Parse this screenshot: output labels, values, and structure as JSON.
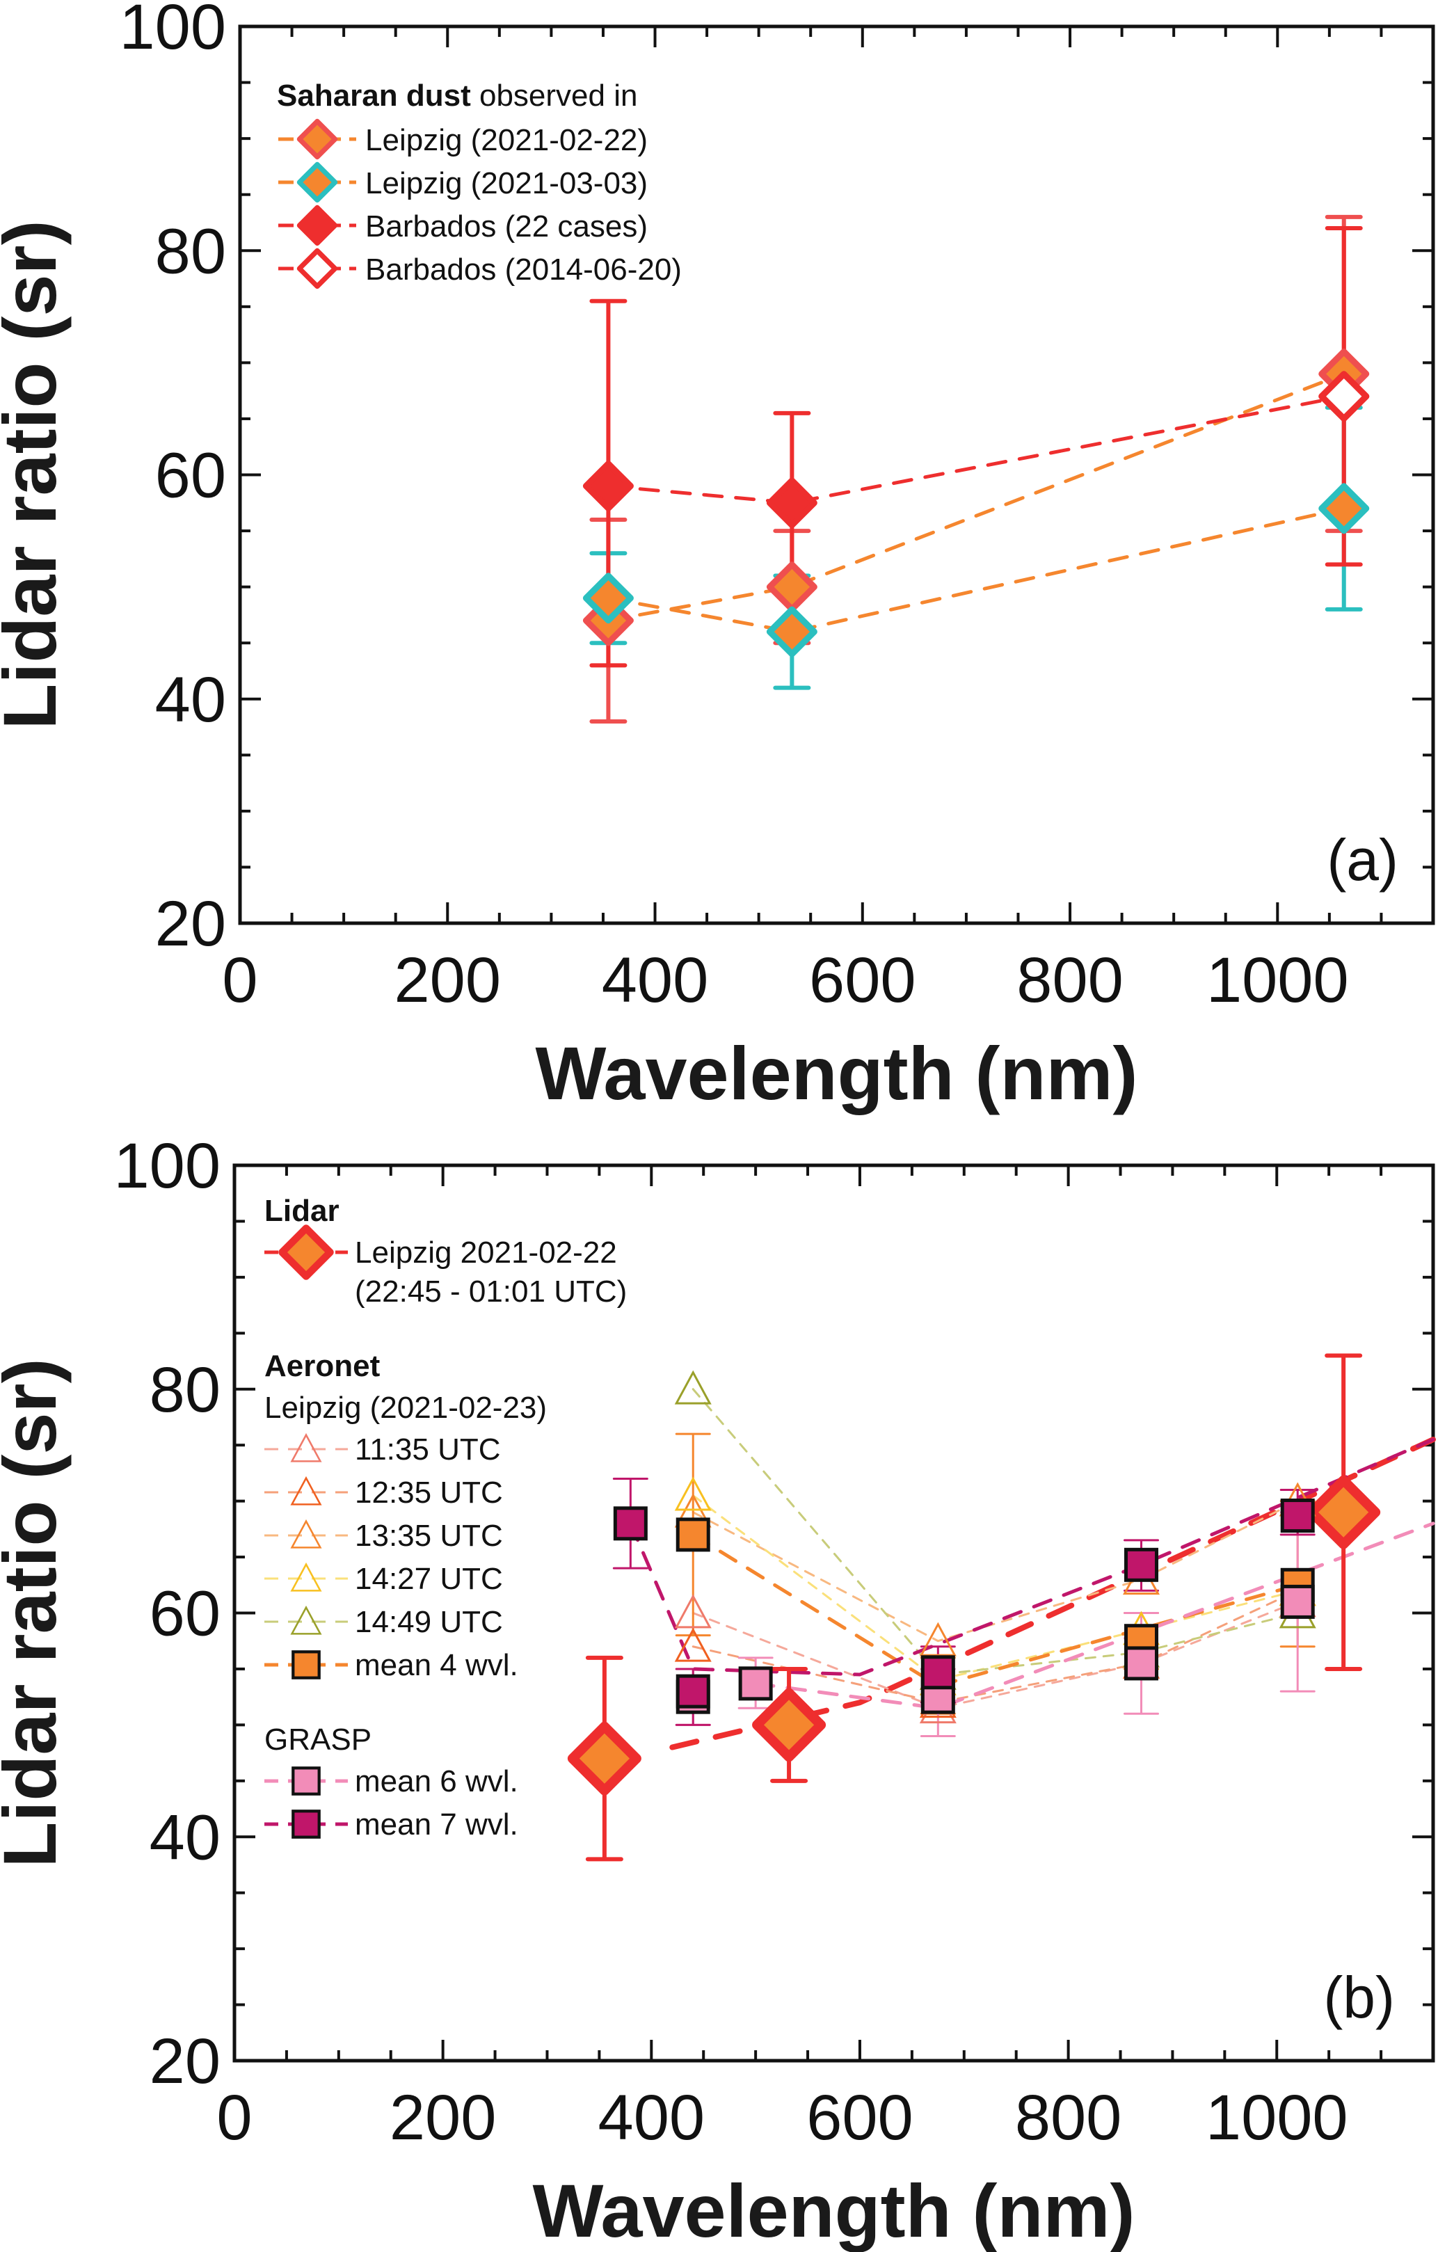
{
  "chart_data": [
    {
      "type": "scatter",
      "panel": "(a)",
      "xlabel": "Wavelength (nm)",
      "ylabel": "Lidar ratio (sr)",
      "xlim": [
        0,
        1150
      ],
      "ylim": [
        20,
        100
      ],
      "xticks": [
        0,
        200,
        400,
        600,
        800,
        1000
      ],
      "yticks": [
        20,
        40,
        60,
        80,
        100
      ],
      "grid": false,
      "legend_title_bold": "Saharan dust",
      "legend_title_rest": " observed in",
      "legend_placement": "top-left",
      "series": [
        {
          "name": "Leipzig (2021-02-22)",
          "marker": "diamond",
          "fill": "#f5862e",
          "edge": "#ef4f4f",
          "line": "#f5862e",
          "err": "#ef4f4f",
          "x": [
            355,
            532,
            1064
          ],
          "y": [
            47,
            50,
            69
          ],
          "ylo": [
            38,
            45,
            55
          ],
          "yhi": [
            56,
            55,
            83
          ]
        },
        {
          "name": "Leipzig (2021-03-03)",
          "marker": "diamond",
          "fill": "#f5862e",
          "edge": "#2bbfbf",
          "line": "#f5862e",
          "err": "#2bbfbf",
          "x": [
            355,
            532,
            1064
          ],
          "y": [
            49,
            46,
            57
          ],
          "ylo": [
            45,
            41,
            48
          ],
          "yhi": [
            53,
            51,
            66
          ]
        },
        {
          "name": "Barbados (22 cases)",
          "marker": "diamond",
          "fill": "#ee2e2e",
          "edge": "#ee2e2e",
          "line": "#ee2e2e",
          "err": "#ee2e2e",
          "x": [
            355,
            532,
            1064
          ],
          "y": [
            59,
            57.5,
            67
          ],
          "ylo": [
            43,
            50,
            52
          ],
          "yhi": [
            75.5,
            65.5,
            82
          ]
        },
        {
          "name": "Barbados  (2014-06-20)",
          "marker": "diamond-open",
          "fill": "#ffffff",
          "edge": "#ee2e2e",
          "line": "#ee2e2e",
          "err": "#ee2e2e",
          "x": [
            1064
          ],
          "y": [
            67
          ],
          "ylo": [],
          "yhi": []
        }
      ]
    },
    {
      "type": "scatter",
      "panel": "(b)",
      "xlabel": "Wavelength (nm)",
      "ylabel": "Lidar ratio (sr)",
      "xlim": [
        0,
        1150
      ],
      "ylim": [
        20,
        100
      ],
      "xticks": [
        0,
        200,
        400,
        600,
        800,
        1000
      ],
      "yticks": [
        20,
        40,
        60,
        80,
        100
      ],
      "grid": false,
      "legend_placement": "top-left",
      "legend_groups": [
        {
          "title": "Lidar",
          "bold": true
        },
        {
          "title": "Aeronet",
          "bold": true,
          "subtitle": "Leipzig (2021-02-23)"
        },
        {
          "title": "GRASP",
          "bold": false
        }
      ],
      "series": [
        {
          "name": "Leipzig 2021-02-22",
          "name2": "(22:45 - 01:01 UTC)",
          "group": "Lidar",
          "marker": "diamond-big",
          "fill": "#f5862e",
          "edge": "#ee2e2e",
          "line": "#ee2e2e",
          "err": "#ee2e2e",
          "x": [
            355,
            532,
            1064
          ],
          "y": [
            47,
            50,
            69
          ],
          "ylo": [
            38,
            45,
            55
          ],
          "yhi": [
            56,
            55,
            83
          ],
          "fit": [
            [
              420,
              48
            ],
            [
              600,
              52
            ],
            [
              1150,
              75.5
            ]
          ]
        },
        {
          "name": "11:35 UTC",
          "group": "Aeronet",
          "marker": "triangle",
          "fill": "none",
          "edge": "#ef7a6a",
          "line": "#f5a89a",
          "x": [
            440,
            675,
            870,
            1020
          ],
          "y": [
            60,
            51.5,
            55.5,
            61
          ],
          "ylo": [],
          "yhi": []
        },
        {
          "name": "12:35 UTC",
          "group": "Aeronet",
          "marker": "triangle",
          "fill": "none",
          "edge": "#f06020",
          "line": "#f5a07a",
          "x": [
            440,
            675,
            870,
            1020
          ],
          "y": [
            57,
            52,
            55.5,
            62
          ],
          "ylo": [],
          "yhi": []
        },
        {
          "name": "13:35 UTC",
          "group": "Aeronet",
          "marker": "triangle",
          "fill": "none",
          "edge": "#f5862e",
          "line": "#f8b880",
          "x": [
            440,
            675,
            870,
            1020
          ],
          "y": [
            69,
            57.5,
            63,
            70
          ],
          "ylo": [],
          "yhi": []
        },
        {
          "name": "14:27 UTC",
          "group": "Aeronet",
          "marker": "triangle",
          "fill": "none",
          "edge": "#f8c020",
          "line": "#fae07a",
          "x": [
            440,
            675,
            870,
            1020
          ],
          "y": [
            70.5,
            54,
            58.5,
            62
          ],
          "ylo": [],
          "yhi": []
        },
        {
          "name": "14:49 UTC",
          "group": "Aeronet",
          "marker": "triangle",
          "fill": "none",
          "edge": "#9aa02a",
          "line": "#c8cc7a",
          "x": [
            440,
            675,
            870,
            1020
          ],
          "y": [
            80,
            54.5,
            56.5,
            60
          ],
          "ylo": [],
          "yhi": []
        },
        {
          "name": "mean 4 wvl.",
          "group": "Aeronet",
          "marker": "square",
          "fill": "#f5862e",
          "edge": "#111111",
          "line": "#f5862e",
          "err": "#f5862e",
          "x": [
            440,
            675,
            870,
            1020
          ],
          "y": [
            67,
            53.5,
            57.5,
            62.5
          ],
          "ylo": [
            58,
            51,
            55,
            57
          ],
          "yhi": [
            76,
            56,
            60,
            70
          ],
          "fit": [
            [
              440,
              67
            ],
            [
              675,
              53.5
            ],
            [
              1020,
              62.5
            ]
          ]
        },
        {
          "name": "mean 6 wvl.",
          "group": "GRASP",
          "marker": "square",
          "fill": "#f28cb8",
          "edge": "#111111",
          "line": "#f28cb8",
          "err": "#f28cb8",
          "x": [
            440,
            500,
            675,
            870,
            1020
          ],
          "y": [
            52.5,
            53.7,
            52.5,
            55.5,
            61
          ],
          "ylo": [
            50,
            51.5,
            49,
            51,
            53
          ],
          "yhi": [
            55,
            56,
            55,
            60,
            69
          ],
          "fit": [
            [
              500,
              53.7
            ],
            [
              675,
              51.5
            ],
            [
              1150,
              68
            ]
          ]
        },
        {
          "name": "mean 7 wvl.",
          "group": "GRASP",
          "marker": "square",
          "fill": "#c0166a",
          "edge": "#111111",
          "line": "#c0166a",
          "err": "#c0166a",
          "x": [
            380,
            440,
            675,
            870,
            1020
          ],
          "y": [
            68,
            53,
            54.7,
            64.3,
            68.7
          ],
          "ylo": [
            64,
            50,
            52,
            62,
            67
          ],
          "yhi": [
            72,
            55,
            57,
            66.5,
            71
          ],
          "fit": [
            [
              380,
              68
            ],
            [
              440,
              55
            ],
            [
              600,
              54.5
            ],
            [
              870,
              64.3
            ],
            [
              1150,
              75.5
            ]
          ]
        }
      ]
    }
  ]
}
